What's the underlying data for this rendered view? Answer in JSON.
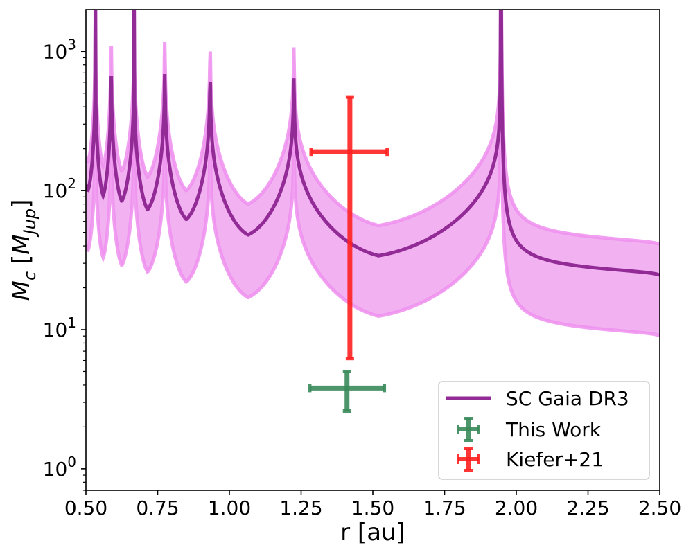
{
  "chart_data": {
    "type": "line",
    "xlabel": "r [au]",
    "ylabel_main": "M",
    "ylabel_sub": "c",
    "ylabel_unit_main": "M",
    "ylabel_unit_sub": "Jup",
    "xlim": [
      0.5,
      2.5
    ],
    "ylim_log10": [
      -0.155,
      3.3
    ],
    "yscale": "log",
    "x_ticks": [
      0.5,
      0.75,
      1.0,
      1.25,
      1.5,
      1.75,
      2.0,
      2.25,
      2.5
    ],
    "x_tick_labels": [
      "0.50",
      "0.75",
      "1.00",
      "1.25",
      "1.50",
      "1.75",
      "2.00",
      "2.25",
      "2.50"
    ],
    "y_ticks": [
      {
        "base": "10",
        "exp": "0",
        "value": 1
      },
      {
        "base": "10",
        "exp": "1",
        "value": 10
      },
      {
        "base": "10",
        "exp": "2",
        "value": 100
      },
      {
        "base": "10",
        "exp": "3",
        "value": 1000
      }
    ],
    "resonances": [
      0.533,
      0.588,
      0.668,
      0.775,
      0.933,
      1.225,
      1.945
    ],
    "series": [
      {
        "name": "SC Gaia DR3",
        "kind": "curve",
        "color": "#922b96",
        "minima": [
          [
            0.507,
            100
          ],
          [
            0.56,
            92
          ],
          [
            0.625,
            84
          ],
          [
            0.715,
            73
          ],
          [
            0.85,
            62
          ],
          [
            1.065,
            48
          ],
          [
            1.52,
            34
          ]
        ],
        "right_end": [
          2.5,
          24
        ]
      },
      {
        "name": "upper bound",
        "kind": "band-edge",
        "color": "#ee8eee",
        "minima": [
          [
            0.507,
            160
          ],
          [
            0.56,
            150
          ],
          [
            0.625,
            138
          ],
          [
            0.715,
            125
          ],
          [
            0.85,
            100
          ],
          [
            1.065,
            80
          ],
          [
            1.52,
            56
          ]
        ],
        "right_end": [
          2.5,
          40
        ]
      },
      {
        "name": "lower bound",
        "kind": "band-edge",
        "color": "#ee8eee",
        "minima": [
          [
            0.507,
            37
          ],
          [
            0.56,
            33
          ],
          [
            0.625,
            29
          ],
          [
            0.715,
            26
          ],
          [
            0.85,
            22
          ],
          [
            1.065,
            17
          ],
          [
            1.52,
            12.5
          ]
        ],
        "right_end": [
          2.5,
          8.8
        ]
      },
      {
        "name": "This Work",
        "kind": "errorbar",
        "color": "#3a8a5a",
        "x": 1.41,
        "x_err": [
          1.28,
          1.54
        ],
        "y": 3.8,
        "y_err": [
          2.6,
          5.0
        ]
      },
      {
        "name": "Kiefer+21",
        "kind": "errorbar",
        "color": "#ff2020",
        "x": 1.42,
        "x_err": [
          1.285,
          1.55
        ],
        "y": 190,
        "y_err": [
          6.2,
          470
        ]
      }
    ],
    "legend": {
      "position": "lower-right",
      "entries": [
        "SC Gaia DR3",
        "This Work",
        "Kiefer+21"
      ]
    }
  }
}
